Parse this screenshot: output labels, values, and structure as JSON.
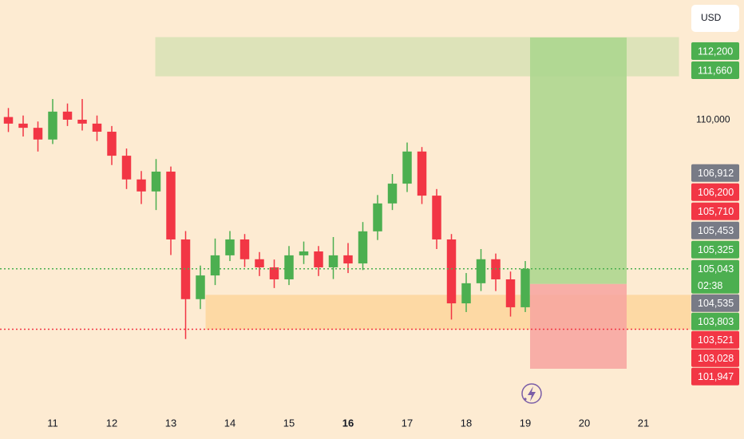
{
  "chart_data": {
    "type": "candlestick",
    "currency": "USD",
    "countdown": "02:38",
    "background": "#fdebd2",
    "up_color": "#4caf50",
    "down_color": "#f23645",
    "x": [
      10.25,
      10.5,
      10.75,
      11.0,
      11.25,
      11.5,
      11.75,
      12.0,
      12.25,
      12.5,
      12.75,
      13.0,
      13.25,
      13.5,
      13.75,
      14.0,
      14.25,
      14.5,
      14.75,
      15.0,
      15.25,
      15.5,
      15.75,
      16.0,
      16.25,
      16.5,
      16.75,
      17.0,
      17.25,
      17.5,
      17.75,
      18.0,
      18.25,
      18.5,
      18.75,
      19.0
    ],
    "open": [
      110100,
      109880,
      109740,
      109350,
      110280,
      110010,
      109880,
      109610,
      108810,
      108020,
      107620,
      108280,
      106020,
      104030,
      104820,
      105490,
      106020,
      105360,
      105090,
      104690,
      105490,
      105620,
      105090,
      105490,
      105220,
      106290,
      107220,
      107880,
      108950,
      107480,
      106020,
      103890,
      104560,
      105360,
      104690,
      103760
    ],
    "high": [
      110400,
      110150,
      109950,
      110700,
      110550,
      110700,
      110150,
      109800,
      109050,
      108300,
      108700,
      108450,
      106300,
      105150,
      106050,
      106300,
      106200,
      105600,
      105350,
      105800,
      105950,
      105800,
      106100,
      105900,
      106600,
      107500,
      108200,
      109250,
      109100,
      107700,
      106200,
      104900,
      105700,
      105550,
      104950,
      105300
    ],
    "low": [
      109600,
      109450,
      108950,
      109200,
      109800,
      109650,
      109300,
      108500,
      107700,
      107200,
      107000,
      105500,
      102700,
      103700,
      104500,
      105300,
      105100,
      104800,
      104400,
      104500,
      105200,
      104800,
      104700,
      104900,
      105000,
      106000,
      107000,
      107600,
      107200,
      105700,
      103350,
      103600,
      104300,
      104300,
      103450,
      103600
    ],
    "close": [
      109880,
      109740,
      109350,
      110280,
      110010,
      109880,
      109610,
      108810,
      108020,
      107620,
      108280,
      106020,
      104030,
      104820,
      105490,
      106020,
      105360,
      105090,
      104690,
      105490,
      105620,
      105090,
      105490,
      105220,
      106290,
      107220,
      107880,
      108950,
      107480,
      106020,
      103890,
      104560,
      105360,
      104690,
      103760,
      105043
    ],
    "xlim": [
      10.108,
      21.797
    ],
    "xticks": [
      11,
      12,
      13,
      14,
      15,
      16,
      17,
      18,
      19,
      20,
      21
    ],
    "bold_xticks": [
      16
    ],
    "ylim": [
      100300,
      114000
    ],
    "yticks": [
      {
        "value": 110000,
        "label": "110,000"
      }
    ],
    "grid": false,
    "zones": [
      {
        "x": [
          12.743,
          21.595
        ],
        "y": [
          111470,
          112750
        ],
        "color": "#dde3b9"
      },
      {
        "x": [
          13.595,
          21.797
        ],
        "y": [
          103028,
          104160
        ],
        "color": "#fdd9a4"
      }
    ],
    "position": {
      "x": [
        19.081,
        20.716
      ],
      "entry": 104535,
      "target": 112750,
      "stop": 101710,
      "target_color": "#a9d68c",
      "stop_color": "#f7a3a0"
    },
    "price_labels": [
      {
        "value": 112200,
        "label": "112,200",
        "color": "#4caf50"
      },
      {
        "value": 111660,
        "label": "111,660",
        "color": "#4caf50"
      },
      {
        "value": 106912,
        "label": "106,912",
        "color": "#787b86"
      },
      {
        "value": 106200,
        "label": "106,200",
        "color": "#f23645"
      },
      {
        "value": 105710,
        "label": "105,710",
        "color": "#f23645"
      },
      {
        "value": 105453,
        "label": "105,453",
        "color": "#787b86"
      },
      {
        "value": 105325,
        "label": "105,325",
        "color": "#4caf50"
      },
      {
        "value": 105043,
        "label": "105,043",
        "color": "#4caf50",
        "line": "dotted"
      },
      {
        "value": 104535,
        "label": "104,535",
        "color": "#787b86"
      },
      {
        "value": 103803,
        "label": "103,803",
        "color": "#4caf50"
      },
      {
        "value": 103521,
        "label": "103,521",
        "color": "#f23645"
      },
      {
        "value": 103028,
        "label": "103,028",
        "color": "#f23645",
        "line": "dotted"
      },
      {
        "value": 101947,
        "label": "101,947",
        "color": "#f23645"
      }
    ]
  }
}
